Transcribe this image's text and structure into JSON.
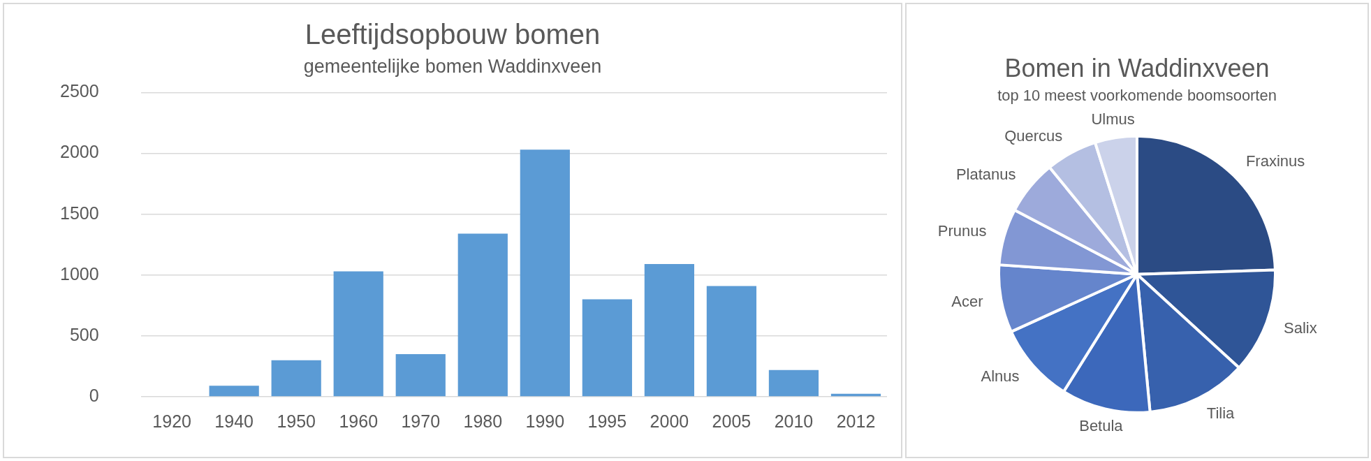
{
  "chart_data": [
    {
      "type": "bar",
      "title": "Leeftijdsopbouw bomen",
      "subtitle": "gemeentelijke bomen Waddinxveen",
      "categories": [
        "1920",
        "1940",
        "1950",
        "1960",
        "1970",
        "1980",
        "1990",
        "1995",
        "2000",
        "2005",
        "2010",
        "2012"
      ],
      "values": [
        0,
        90,
        300,
        1030,
        350,
        1340,
        2030,
        800,
        1090,
        910,
        220,
        25
      ],
      "color": "#5b9bd5",
      "ylim": [
        0,
        2500
      ],
      "yticks": [
        0,
        500,
        1000,
        1500,
        2000,
        2500
      ],
      "grid": "y",
      "legend": false
    },
    {
      "type": "pie",
      "title": "Bomen in Waddinxveen",
      "subtitle": "top 10 meest voorkomende boomsoorten",
      "categories": [
        "Fraxinus",
        "Salix",
        "Tilia",
        "Betula",
        "Alnus",
        "Acer",
        "Prunus",
        "Platanus",
        "Quercus",
        "Ulmus"
      ],
      "values": [
        24.5,
        12.3,
        11.7,
        10.4,
        9.3,
        7.9,
        6.6,
        6.4,
        6.0,
        4.9
      ],
      "colors": [
        "#2b4b84",
        "#2f5597",
        "#3761ad",
        "#3c68bb",
        "#4472c4",
        "#6585cc",
        "#8297d4",
        "#9daadb",
        "#b4bfe2",
        "#cbd2ea"
      ],
      "legend": false
    }
  ]
}
